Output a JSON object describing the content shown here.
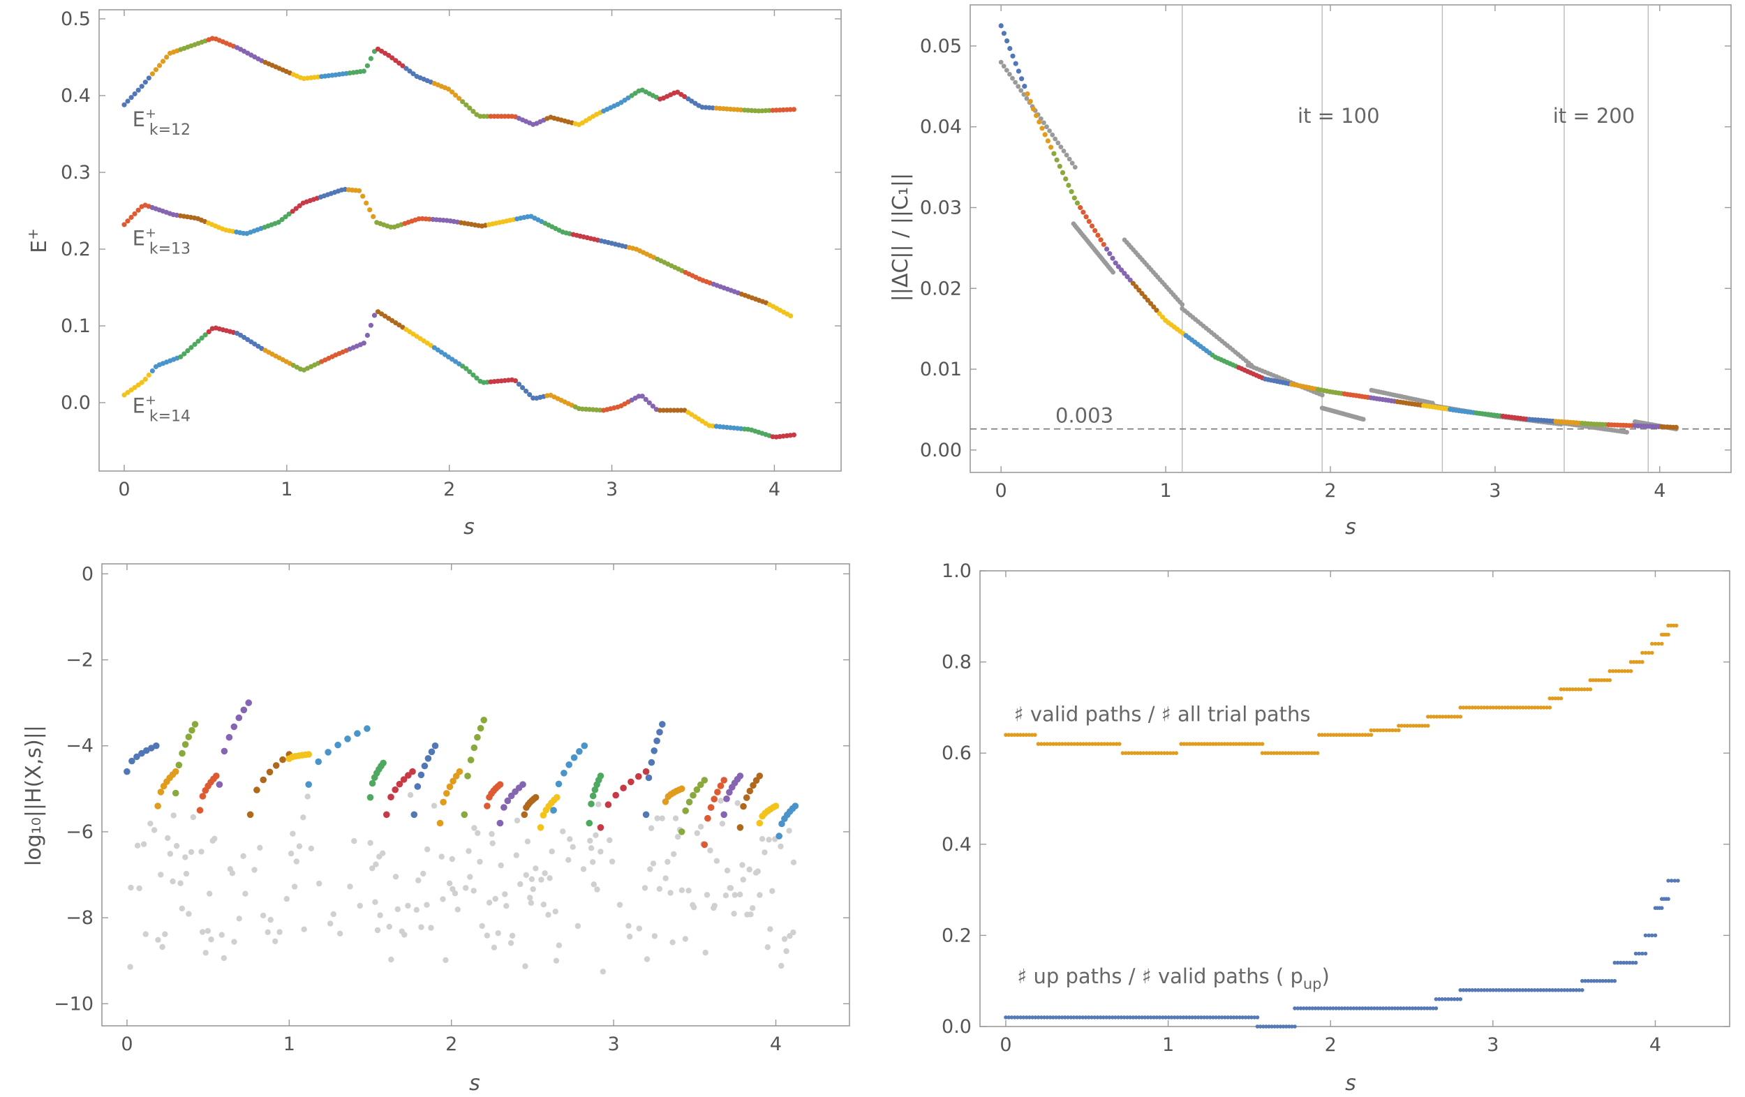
{
  "colors": {
    "palette": [
      "#5177b7",
      "#e19b1d",
      "#8aa93d",
      "#dd5a32",
      "#8564b1",
      "#b0691c",
      "#f3c21b",
      "#4a94cc",
      "#4fa860",
      "#c73a45",
      "#999999",
      "#cccccc"
    ],
    "gray": "#9a9a9a",
    "lightgray": "#d0d0d0",
    "blue": "#5479b5",
    "orange": "#e19b1d",
    "frame": "#999999",
    "text": "#555555"
  },
  "chart_data": [
    {
      "id": "energy",
      "type": "scatter",
      "xlabel": "s",
      "ylabel_main": "E",
      "ylabel_sup": "+",
      "xlim": [
        -0.06,
        4.2
      ],
      "ylim": [
        -0.08,
        0.51
      ],
      "xticks": [
        0,
        1,
        2,
        3,
        4
      ],
      "xtick_labels": [
        "0",
        "1",
        "2",
        "3",
        "4"
      ],
      "yticks": [
        0.0,
        0.1,
        0.2,
        0.3,
        0.4,
        0.5
      ],
      "ytick_labels": [
        "0.0",
        "0.1",
        "0.2",
        "0.3",
        "0.4",
        "0.5"
      ],
      "curve_labels": [
        {
          "base": "E",
          "sup": "+",
          "sub": "k=12",
          "x": 0.05,
          "y": 0.36
        },
        {
          "base": "E",
          "sup": "+",
          "sub": "k=13",
          "x": 0.05,
          "y": 0.205
        },
        {
          "base": "E",
          "sup": "+",
          "sub": "k=14",
          "x": 0.05,
          "y": -0.013
        }
      ],
      "series": [
        {
          "name": "k=12",
          "knots": [
            [
              0.0,
              0.388
            ],
            [
              0.1,
              0.41
            ],
            [
              0.28,
              0.455
            ],
            [
              0.55,
              0.475
            ],
            [
              0.7,
              0.462
            ],
            [
              0.85,
              0.445
            ],
            [
              1.1,
              0.422
            ],
            [
              1.3,
              0.427
            ],
            [
              1.48,
              0.432
            ],
            [
              1.55,
              0.462
            ],
            [
              1.63,
              0.452
            ],
            [
              1.8,
              0.425
            ],
            [
              2.0,
              0.408
            ],
            [
              2.18,
              0.373
            ],
            [
              2.4,
              0.373
            ],
            [
              2.52,
              0.362
            ],
            [
              2.62,
              0.372
            ],
            [
              2.8,
              0.362
            ],
            [
              2.9,
              0.375
            ],
            [
              3.05,
              0.39
            ],
            [
              3.18,
              0.408
            ],
            [
              3.3,
              0.395
            ],
            [
              3.4,
              0.405
            ],
            [
              3.55,
              0.385
            ],
            [
              3.75,
              0.382
            ],
            [
              3.9,
              0.38
            ],
            [
              4.12,
              0.382
            ]
          ]
        },
        {
          "name": "k=13",
          "knots": [
            [
              0.0,
              0.232
            ],
            [
              0.12,
              0.258
            ],
            [
              0.3,
              0.245
            ],
            [
              0.45,
              0.24
            ],
            [
              0.62,
              0.225
            ],
            [
              0.75,
              0.22
            ],
            [
              0.95,
              0.235
            ],
            [
              1.1,
              0.26
            ],
            [
              1.35,
              0.278
            ],
            [
              1.45,
              0.276
            ],
            [
              1.55,
              0.235
            ],
            [
              1.65,
              0.228
            ],
            [
              1.82,
              0.24
            ],
            [
              2.0,
              0.237
            ],
            [
              2.2,
              0.23
            ],
            [
              2.5,
              0.243
            ],
            [
              2.7,
              0.222
            ],
            [
              2.95,
              0.21
            ],
            [
              3.15,
              0.2
            ],
            [
              3.3,
              0.185
            ],
            [
              3.55,
              0.16
            ],
            [
              3.75,
              0.145
            ],
            [
              3.95,
              0.13
            ],
            [
              4.1,
              0.113
            ]
          ]
        },
        {
          "name": "k=14",
          "knots": [
            [
              0.0,
              0.01
            ],
            [
              0.12,
              0.028
            ],
            [
              0.2,
              0.048
            ],
            [
              0.35,
              0.06
            ],
            [
              0.55,
              0.098
            ],
            [
              0.7,
              0.09
            ],
            [
              0.85,
              0.07
            ],
            [
              1.1,
              0.042
            ],
            [
              1.3,
              0.062
            ],
            [
              1.48,
              0.078
            ],
            [
              1.55,
              0.12
            ],
            [
              1.7,
              0.1
            ],
            [
              1.92,
              0.07
            ],
            [
              2.1,
              0.045
            ],
            [
              2.2,
              0.026
            ],
            [
              2.4,
              0.03
            ],
            [
              2.52,
              0.005
            ],
            [
              2.62,
              0.01
            ],
            [
              2.8,
              -0.008
            ],
            [
              2.95,
              -0.01
            ],
            [
              3.05,
              -0.005
            ],
            [
              3.18,
              0.01
            ],
            [
              3.28,
              -0.01
            ],
            [
              3.45,
              -0.01
            ],
            [
              3.6,
              -0.03
            ],
            [
              3.85,
              -0.035
            ],
            [
              4.0,
              -0.045
            ],
            [
              4.12,
              -0.042
            ]
          ]
        }
      ]
    },
    {
      "id": "deltaC",
      "type": "scatter",
      "xlabel": "s",
      "ylabel": "||ΔC|| / ||C₁||",
      "xlim": [
        -0.06,
        4.2
      ],
      "ylim": [
        -0.002,
        0.055
      ],
      "xticks": [
        0,
        1,
        2,
        3,
        4
      ],
      "xtick_labels": [
        "0",
        "1",
        "2",
        "3",
        "4"
      ],
      "yticks": [
        0.0,
        0.01,
        0.02,
        0.03,
        0.04,
        0.05
      ],
      "ytick_labels": [
        "0.00",
        "0.01",
        "0.02",
        "0.03",
        "0.04",
        "0.05"
      ],
      "threshold": {
        "value": 0.0026,
        "label": "0.003",
        "label_x": 0.33
      },
      "vlines": [
        1.1,
        1.95,
        2.68,
        3.42,
        3.93
      ],
      "vline_labels": [
        {
          "x": 2.05,
          "y": 0.0405,
          "text": "it = 100"
        },
        {
          "x": 3.6,
          "y": 0.0405,
          "text": "it = 200"
        }
      ],
      "series": [
        {
          "name": "colored",
          "knots": [
            [
              0.0,
              0.0525
            ],
            [
              0.2,
              0.042
            ],
            [
              0.45,
              0.031
            ],
            [
              0.7,
              0.023
            ],
            [
              1.0,
              0.016
            ],
            [
              1.3,
              0.0115
            ],
            [
              1.6,
              0.0088
            ],
            [
              2.0,
              0.0072
            ],
            [
              2.4,
              0.006
            ],
            [
              2.8,
              0.0048
            ],
            [
              3.2,
              0.0038
            ],
            [
              3.6,
              0.0032
            ],
            [
              4.1,
              0.0028
            ]
          ]
        },
        {
          "name": "gray",
          "segments": [
            [
              [
                0.0,
                0.048
              ],
              [
                0.45,
                0.035
              ]
            ],
            [
              [
                0.44,
                0.028
              ],
              [
                0.68,
                0.022
              ]
            ],
            [
              [
                0.75,
                0.026
              ],
              [
                1.1,
                0.018
              ]
            ],
            [
              [
                1.1,
                0.0175
              ],
              [
                1.52,
                0.0105
              ]
            ],
            [
              [
                1.5,
                0.0105
              ],
              [
                1.95,
                0.0068
              ]
            ],
            [
              [
                1.95,
                0.0052
              ],
              [
                2.2,
                0.0038
              ]
            ],
            [
              [
                2.25,
                0.0074
              ],
              [
                2.62,
                0.0058
              ]
            ],
            [
              [
                2.62,
                0.0055
              ],
              [
                3.0,
                0.0042
              ]
            ],
            [
              [
                3.0,
                0.0042
              ],
              [
                3.4,
                0.0032
              ]
            ],
            [
              [
                3.42,
                0.0033
              ],
              [
                3.8,
                0.0022
              ]
            ],
            [
              [
                3.85,
                0.0035
              ],
              [
                4.1,
                0.0026
              ]
            ]
          ]
        }
      ]
    },
    {
      "id": "residual",
      "type": "scatter",
      "xlabel": "s",
      "ylabel": "log₁₀||H(X,s)||",
      "xlim": [
        -0.06,
        4.2
      ],
      "ylim": [
        -10.4,
        0.2
      ],
      "xticks": [
        0,
        1,
        2,
        3,
        4
      ],
      "xtick_labels": [
        "0",
        "1",
        "2",
        "3",
        "4"
      ],
      "yticks": [
        0,
        -2,
        -4,
        -6,
        -8,
        -10
      ],
      "ytick_labels": [
        "0",
        "−2",
        "−4",
        "−6",
        "−8",
        "−10"
      ],
      "streaks": [
        [
          0.0,
          0.18,
          -4.6,
          -4.0
        ],
        [
          0.19,
          0.3,
          -5.4,
          -4.6
        ],
        [
          0.3,
          0.42,
          -5.1,
          -3.5
        ],
        [
          0.45,
          0.55,
          -5.5,
          -4.7
        ],
        [
          0.57,
          0.75,
          -4.9,
          -3.0
        ],
        [
          0.76,
          1.0,
          -5.6,
          -4.2
        ],
        [
          1.0,
          1.12,
          -4.3,
          -4.2
        ],
        [
          1.12,
          1.48,
          -4.9,
          -3.6
        ],
        [
          1.5,
          1.58,
          -5.2,
          -4.4
        ],
        [
          1.6,
          1.76,
          -5.6,
          -4.6
        ],
        [
          1.77,
          1.9,
          -5.6,
          -4.0
        ],
        [
          1.93,
          2.05,
          -5.8,
          -4.6
        ],
        [
          2.08,
          2.2,
          -5.6,
          -3.4
        ],
        [
          2.22,
          2.3,
          -5.4,
          -4.9
        ],
        [
          2.3,
          2.44,
          -5.8,
          -4.9
        ],
        [
          2.45,
          2.52,
          -5.6,
          -5.2
        ],
        [
          2.55,
          2.65,
          -5.9,
          -5.2
        ],
        [
          2.63,
          2.82,
          -5.5,
          -4.0
        ],
        [
          2.85,
          2.92,
          -5.8,
          -4.7
        ],
        [
          2.92,
          3.2,
          -5.9,
          -4.6
        ],
        [
          3.2,
          3.3,
          -5.6,
          -3.5
        ],
        [
          3.32,
          3.42,
          -5.3,
          -5.0
        ],
        [
          3.42,
          3.56,
          -6.0,
          -4.8
        ],
        [
          3.56,
          3.68,
          -6.3,
          -4.8
        ],
        [
          3.68,
          3.78,
          -5.6,
          -4.7
        ],
        [
          3.78,
          3.9,
          -5.9,
          -4.7
        ],
        [
          3.9,
          4.0,
          -5.8,
          -5.4
        ],
        [
          4.02,
          4.12,
          -6.1,
          -5.4
        ]
      ]
    },
    {
      "id": "paths",
      "type": "scatter",
      "xlabel": "s",
      "xlim": [
        -0.06,
        4.2
      ],
      "ylim": [
        0.0,
        1.0
      ],
      "xticks": [
        0,
        1,
        2,
        3,
        4
      ],
      "xtick_labels": [
        "0",
        "1",
        "2",
        "3",
        "4"
      ],
      "yticks": [
        0.0,
        0.2,
        0.4,
        0.6,
        0.8,
        1.0
      ],
      "ytick_labels": [
        "0.0",
        "0.2",
        "0.4",
        "0.6",
        "0.8",
        "1.0"
      ],
      "labels": [
        {
          "text": "♯ valid paths  /  ♯ all trial paths",
          "x": 0.05,
          "y": 0.67
        },
        {
          "text": "♯ up paths  /  ♯ valid paths  ( p",
          "sub": "up",
          "close": ")",
          "x": 0.07,
          "y": 0.095
        }
      ],
      "series": [
        {
          "name": "valid_over_all",
          "color": "#e19b1d",
          "steps": [
            [
              0.0,
              0.18,
              0.64
            ],
            [
              0.2,
              0.7,
              0.62
            ],
            [
              0.72,
              1.05,
              0.6
            ],
            [
              1.08,
              1.58,
              0.62
            ],
            [
              1.58,
              1.92,
              0.6
            ],
            [
              1.93,
              2.25,
              0.64
            ],
            [
              2.25,
              2.42,
              0.65
            ],
            [
              2.42,
              2.6,
              0.66
            ],
            [
              2.6,
              2.8,
              0.68
            ],
            [
              2.8,
              3.35,
              0.7
            ],
            [
              3.35,
              3.42,
              0.72
            ],
            [
              3.42,
              3.6,
              0.74
            ],
            [
              3.6,
              3.72,
              0.76
            ],
            [
              3.72,
              3.85,
              0.78
            ],
            [
              3.85,
              3.92,
              0.8
            ],
            [
              3.92,
              3.98,
              0.82
            ],
            [
              3.98,
              4.04,
              0.84
            ],
            [
              4.04,
              4.08,
              0.86
            ],
            [
              4.08,
              4.13,
              0.88
            ]
          ]
        },
        {
          "name": "up_over_valid",
          "color": "#5479b5",
          "steps": [
            [
              0.0,
              1.55,
              0.02
            ],
            [
              1.55,
              1.78,
              0.0
            ],
            [
              1.78,
              2.65,
              0.04
            ],
            [
              2.65,
              2.8,
              0.06
            ],
            [
              2.8,
              3.55,
              0.08
            ],
            [
              3.55,
              3.75,
              0.1
            ],
            [
              3.75,
              3.88,
              0.14
            ],
            [
              3.88,
              3.94,
              0.16
            ],
            [
              3.94,
              4.0,
              0.2
            ],
            [
              4.0,
              4.04,
              0.26
            ],
            [
              4.04,
              4.08,
              0.28
            ],
            [
              4.08,
              4.14,
              0.32
            ]
          ]
        }
      ]
    }
  ]
}
